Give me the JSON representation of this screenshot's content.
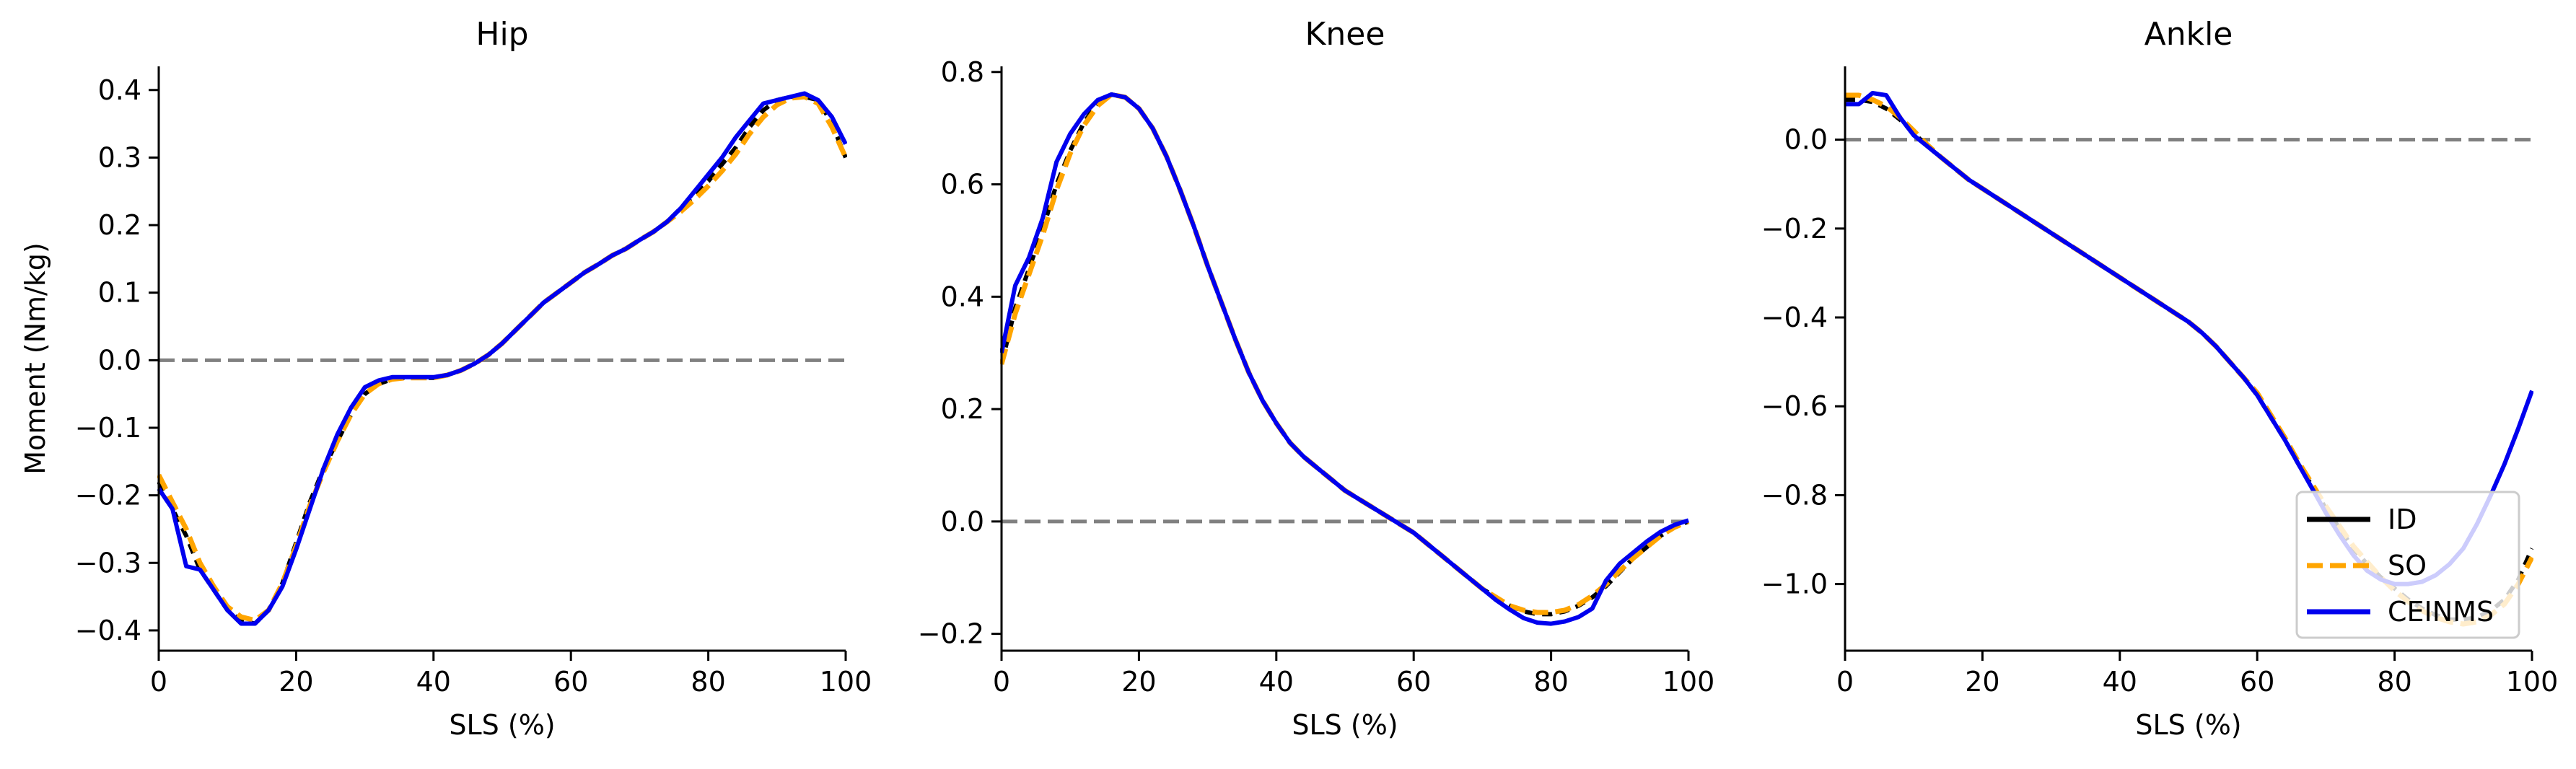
{
  "chart_data": [
    {
      "type": "line",
      "title": "Hip",
      "xlabel": "SLS (%)",
      "ylabel": "Moment (Nm/kg)",
      "xlim": [
        0,
        100
      ],
      "ylim": [
        -0.43,
        0.435
      ],
      "xticks": [
        0,
        20,
        40,
        60,
        80,
        100
      ],
      "yticks": [
        -0.4,
        -0.3,
        -0.2,
        -0.1,
        0.0,
        0.1,
        0.2,
        0.3,
        0.4
      ],
      "ytick_labels": [
        "−0.4",
        "−0.3",
        "−0.2",
        "−0.1",
        "0.0",
        "0.1",
        "0.2",
        "0.3",
        "0.4"
      ],
      "reference_line": 0,
      "series": [
        {
          "name": "ID",
          "color": "#000000",
          "dash": "solid",
          "x": [
            0,
            2,
            4,
            6,
            8,
            10,
            12,
            14,
            16,
            18,
            20,
            22,
            24,
            26,
            28,
            30,
            32,
            34,
            36,
            38,
            40,
            42,
            44,
            46,
            48,
            50,
            52,
            54,
            56,
            58,
            60,
            62,
            64,
            66,
            68,
            70,
            72,
            74,
            76,
            78,
            80,
            82,
            84,
            86,
            88,
            90,
            92,
            94,
            96,
            98,
            100
          ],
          "y": [
            -0.18,
            -0.22,
            -0.26,
            -0.31,
            -0.34,
            -0.37,
            -0.385,
            -0.39,
            -0.37,
            -0.33,
            -0.27,
            -0.21,
            -0.16,
            -0.12,
            -0.08,
            -0.05,
            -0.035,
            -0.028,
            -0.026,
            -0.026,
            -0.026,
            -0.022,
            -0.015,
            -0.005,
            0.008,
            0.025,
            0.045,
            0.065,
            0.085,
            0.1,
            0.115,
            0.13,
            0.142,
            0.155,
            0.165,
            0.178,
            0.19,
            0.205,
            0.225,
            0.245,
            0.265,
            0.29,
            0.315,
            0.345,
            0.37,
            0.385,
            0.39,
            0.39,
            0.385,
            0.35,
            0.3
          ]
        },
        {
          "name": "SO",
          "color": "#FFA500",
          "dash": "dashed",
          "x": [
            0,
            2,
            4,
            6,
            8,
            10,
            12,
            14,
            16,
            18,
            20,
            22,
            24,
            26,
            28,
            30,
            32,
            34,
            36,
            38,
            40,
            42,
            44,
            46,
            48,
            50,
            52,
            54,
            56,
            58,
            60,
            62,
            64,
            66,
            68,
            70,
            72,
            74,
            76,
            78,
            80,
            82,
            84,
            86,
            88,
            90,
            92,
            94,
            96,
            98,
            100
          ],
          "y": [
            -0.17,
            -0.21,
            -0.25,
            -0.3,
            -0.335,
            -0.365,
            -0.38,
            -0.385,
            -0.37,
            -0.33,
            -0.275,
            -0.215,
            -0.165,
            -0.12,
            -0.08,
            -0.05,
            -0.035,
            -0.028,
            -0.026,
            -0.026,
            -0.026,
            -0.022,
            -0.015,
            -0.005,
            0.008,
            0.025,
            0.045,
            0.065,
            0.085,
            0.1,
            0.115,
            0.13,
            0.142,
            0.155,
            0.165,
            0.178,
            0.19,
            0.205,
            0.22,
            0.238,
            0.258,
            0.28,
            0.305,
            0.335,
            0.36,
            0.378,
            0.388,
            0.39,
            0.38,
            0.345,
            0.3
          ]
        },
        {
          "name": "CEINMS",
          "color": "#0000EE",
          "dash": "solid",
          "x": [
            0,
            2,
            4,
            6,
            8,
            10,
            12,
            14,
            16,
            18,
            20,
            22,
            24,
            26,
            28,
            30,
            32,
            34,
            36,
            38,
            40,
            42,
            44,
            46,
            48,
            50,
            52,
            54,
            56,
            58,
            60,
            62,
            64,
            66,
            68,
            70,
            72,
            74,
            76,
            78,
            80,
            82,
            84,
            86,
            88,
            90,
            92,
            94,
            96,
            98,
            100
          ],
          "y": [
            -0.19,
            -0.22,
            -0.305,
            -0.31,
            -0.34,
            -0.37,
            -0.39,
            -0.39,
            -0.37,
            -0.335,
            -0.28,
            -0.22,
            -0.16,
            -0.11,
            -0.07,
            -0.04,
            -0.03,
            -0.025,
            -0.025,
            -0.025,
            -0.025,
            -0.022,
            -0.015,
            -0.005,
            0.008,
            0.025,
            0.045,
            0.065,
            0.085,
            0.1,
            0.115,
            0.13,
            0.142,
            0.155,
            0.165,
            0.178,
            0.19,
            0.205,
            0.225,
            0.25,
            0.275,
            0.3,
            0.33,
            0.355,
            0.38,
            0.385,
            0.39,
            0.395,
            0.385,
            0.36,
            0.32
          ]
        }
      ]
    },
    {
      "type": "line",
      "title": "Knee",
      "xlabel": "SLS (%)",
      "ylabel": "",
      "xlim": [
        0,
        100
      ],
      "ylim": [
        -0.23,
        0.81
      ],
      "xticks": [
        0,
        20,
        40,
        60,
        80,
        100
      ],
      "yticks": [
        -0.2,
        0.0,
        0.2,
        0.4,
        0.6,
        0.8
      ],
      "ytick_labels": [
        "−0.2",
        "0.0",
        "0.2",
        "0.4",
        "0.6",
        "0.8"
      ],
      "reference_line": 0,
      "series": [
        {
          "name": "ID",
          "color": "#000000",
          "dash": "solid",
          "x": [
            0,
            2,
            4,
            6,
            8,
            10,
            12,
            14,
            16,
            18,
            20,
            22,
            24,
            26,
            28,
            30,
            32,
            34,
            36,
            38,
            40,
            42,
            44,
            46,
            48,
            50,
            52,
            54,
            56,
            58,
            60,
            62,
            64,
            66,
            68,
            70,
            72,
            74,
            76,
            78,
            80,
            82,
            84,
            86,
            88,
            90,
            92,
            94,
            96,
            98,
            100
          ],
          "y": [
            0.28,
            0.38,
            0.45,
            0.52,
            0.6,
            0.66,
            0.71,
            0.745,
            0.76,
            0.755,
            0.735,
            0.7,
            0.65,
            0.59,
            0.525,
            0.455,
            0.39,
            0.325,
            0.265,
            0.215,
            0.175,
            0.14,
            0.115,
            0.095,
            0.075,
            0.055,
            0.04,
            0.025,
            0.01,
            -0.005,
            -0.02,
            -0.04,
            -0.06,
            -0.08,
            -0.1,
            -0.12,
            -0.135,
            -0.15,
            -0.16,
            -0.165,
            -0.165,
            -0.16,
            -0.15,
            -0.135,
            -0.115,
            -0.09,
            -0.065,
            -0.045,
            -0.025,
            -0.01,
            0.0
          ]
        },
        {
          "name": "SO",
          "color": "#FFA500",
          "dash": "dashed",
          "x": [
            0,
            2,
            4,
            6,
            8,
            10,
            12,
            14,
            16,
            18,
            20,
            22,
            24,
            26,
            28,
            30,
            32,
            34,
            36,
            38,
            40,
            42,
            44,
            46,
            48,
            50,
            52,
            54,
            56,
            58,
            60,
            62,
            64,
            66,
            68,
            70,
            72,
            74,
            76,
            78,
            80,
            82,
            84,
            86,
            88,
            90,
            92,
            94,
            96,
            98,
            100
          ],
          "y": [
            0.28,
            0.37,
            0.44,
            0.51,
            0.59,
            0.655,
            0.705,
            0.74,
            0.76,
            0.755,
            0.735,
            0.7,
            0.65,
            0.59,
            0.525,
            0.455,
            0.39,
            0.325,
            0.265,
            0.215,
            0.175,
            0.14,
            0.115,
            0.095,
            0.075,
            0.055,
            0.04,
            0.025,
            0.01,
            -0.005,
            -0.02,
            -0.04,
            -0.06,
            -0.08,
            -0.1,
            -0.12,
            -0.135,
            -0.15,
            -0.158,
            -0.162,
            -0.162,
            -0.158,
            -0.148,
            -0.132,
            -0.112,
            -0.088,
            -0.065,
            -0.045,
            -0.025,
            -0.01,
            0.0
          ]
        },
        {
          "name": "CEINMS",
          "color": "#0000EE",
          "dash": "solid",
          "x": [
            0,
            2,
            4,
            6,
            8,
            10,
            12,
            14,
            16,
            18,
            20,
            22,
            24,
            26,
            28,
            30,
            32,
            34,
            36,
            38,
            40,
            42,
            44,
            46,
            48,
            50,
            52,
            54,
            56,
            58,
            60,
            62,
            64,
            66,
            68,
            70,
            72,
            74,
            76,
            78,
            80,
            82,
            84,
            86,
            88,
            90,
            92,
            94,
            96,
            98,
            100
          ],
          "y": [
            0.3,
            0.42,
            0.47,
            0.54,
            0.64,
            0.69,
            0.725,
            0.75,
            0.76,
            0.755,
            0.735,
            0.7,
            0.65,
            0.59,
            0.525,
            0.455,
            0.39,
            0.325,
            0.265,
            0.215,
            0.175,
            0.14,
            0.115,
            0.095,
            0.075,
            0.055,
            0.04,
            0.025,
            0.01,
            -0.005,
            -0.02,
            -0.04,
            -0.06,
            -0.08,
            -0.1,
            -0.12,
            -0.14,
            -0.157,
            -0.172,
            -0.18,
            -0.182,
            -0.178,
            -0.17,
            -0.155,
            -0.105,
            -0.075,
            -0.055,
            -0.035,
            -0.018,
            -0.006,
            0.002
          ]
        }
      ]
    },
    {
      "type": "line",
      "title": "Ankle",
      "xlabel": "SLS (%)",
      "ylabel": "",
      "xlim": [
        0,
        100
      ],
      "ylim": [
        -1.15,
        0.165
      ],
      "xticks": [
        0,
        20,
        40,
        60,
        80,
        100
      ],
      "yticks": [
        -1.0,
        -0.8,
        -0.6,
        -0.4,
        -0.2,
        0.0
      ],
      "ytick_labels": [
        "−1.0",
        "−0.8",
        "−0.6",
        "−0.4",
        "−0.2",
        "0.0"
      ],
      "reference_line": 0,
      "series": [
        {
          "name": "ID",
          "color": "#000000",
          "dash": "solid",
          "x": [
            0,
            2,
            4,
            6,
            8,
            10,
            12,
            14,
            16,
            18,
            20,
            22,
            24,
            26,
            28,
            30,
            32,
            34,
            36,
            38,
            40,
            42,
            44,
            46,
            48,
            50,
            52,
            54,
            56,
            58,
            60,
            62,
            64,
            66,
            68,
            70,
            72,
            74,
            76,
            78,
            80,
            82,
            84,
            86,
            88,
            90,
            92,
            94,
            96,
            98,
            100
          ],
          "y": [
            0.09,
            0.09,
            0.085,
            0.07,
            0.045,
            0.015,
            -0.015,
            -0.04,
            -0.065,
            -0.09,
            -0.11,
            -0.13,
            -0.15,
            -0.17,
            -0.19,
            -0.21,
            -0.23,
            -0.25,
            -0.27,
            -0.29,
            -0.31,
            -0.33,
            -0.35,
            -0.37,
            -0.39,
            -0.41,
            -0.435,
            -0.465,
            -0.5,
            -0.535,
            -0.575,
            -0.625,
            -0.675,
            -0.73,
            -0.78,
            -0.83,
            -0.875,
            -0.92,
            -0.955,
            -0.985,
            -1.01,
            -1.035,
            -1.055,
            -1.07,
            -1.08,
            -1.08,
            -1.075,
            -1.06,
            -1.035,
            -0.99,
            -0.92
          ]
        },
        {
          "name": "SO",
          "color": "#FFA500",
          "dash": "dashed",
          "x": [
            0,
            2,
            4,
            6,
            8,
            10,
            12,
            14,
            16,
            18,
            20,
            22,
            24,
            26,
            28,
            30,
            32,
            34,
            36,
            38,
            40,
            42,
            44,
            46,
            48,
            50,
            52,
            54,
            56,
            58,
            60,
            62,
            64,
            66,
            68,
            70,
            72,
            74,
            76,
            78,
            80,
            82,
            84,
            86,
            88,
            90,
            92,
            94,
            96,
            98,
            100
          ],
          "y": [
            0.1,
            0.1,
            0.09,
            0.075,
            0.05,
            0.02,
            -0.012,
            -0.04,
            -0.065,
            -0.09,
            -0.11,
            -0.13,
            -0.15,
            -0.17,
            -0.19,
            -0.21,
            -0.23,
            -0.25,
            -0.27,
            -0.29,
            -0.31,
            -0.33,
            -0.35,
            -0.37,
            -0.39,
            -0.41,
            -0.435,
            -0.465,
            -0.5,
            -0.535,
            -0.57,
            -0.62,
            -0.67,
            -0.725,
            -0.775,
            -0.825,
            -0.87,
            -0.915,
            -0.95,
            -0.985,
            -1.015,
            -1.04,
            -1.06,
            -1.075,
            -1.085,
            -1.09,
            -1.085,
            -1.07,
            -1.045,
            -1.0,
            -0.94
          ]
        },
        {
          "name": "CEINMS",
          "color": "#0000EE",
          "dash": "solid",
          "x": [
            0,
            2,
            4,
            6,
            8,
            10,
            12,
            14,
            16,
            18,
            20,
            22,
            24,
            26,
            28,
            30,
            32,
            34,
            36,
            38,
            40,
            42,
            44,
            46,
            48,
            50,
            52,
            54,
            56,
            58,
            60,
            62,
            64,
            66,
            68,
            70,
            72,
            74,
            76,
            78,
            80,
            82,
            84,
            86,
            88,
            90,
            92,
            94,
            96,
            98,
            100
          ],
          "y": [
            0.08,
            0.08,
            0.105,
            0.1,
            0.05,
            0.01,
            -0.015,
            -0.04,
            -0.065,
            -0.09,
            -0.11,
            -0.13,
            -0.15,
            -0.17,
            -0.19,
            -0.21,
            -0.23,
            -0.25,
            -0.27,
            -0.29,
            -0.31,
            -0.33,
            -0.35,
            -0.37,
            -0.39,
            -0.41,
            -0.435,
            -0.465,
            -0.5,
            -0.535,
            -0.575,
            -0.625,
            -0.675,
            -0.73,
            -0.785,
            -0.84,
            -0.89,
            -0.935,
            -0.97,
            -0.99,
            -1.0,
            -1.0,
            -0.995,
            -0.98,
            -0.955,
            -0.92,
            -0.865,
            -0.8,
            -0.73,
            -0.65,
            -0.565
          ]
        }
      ],
      "legend": {
        "placement": "lower-right",
        "entries": [
          "ID",
          "SO",
          "CEINMS"
        ]
      }
    }
  ]
}
